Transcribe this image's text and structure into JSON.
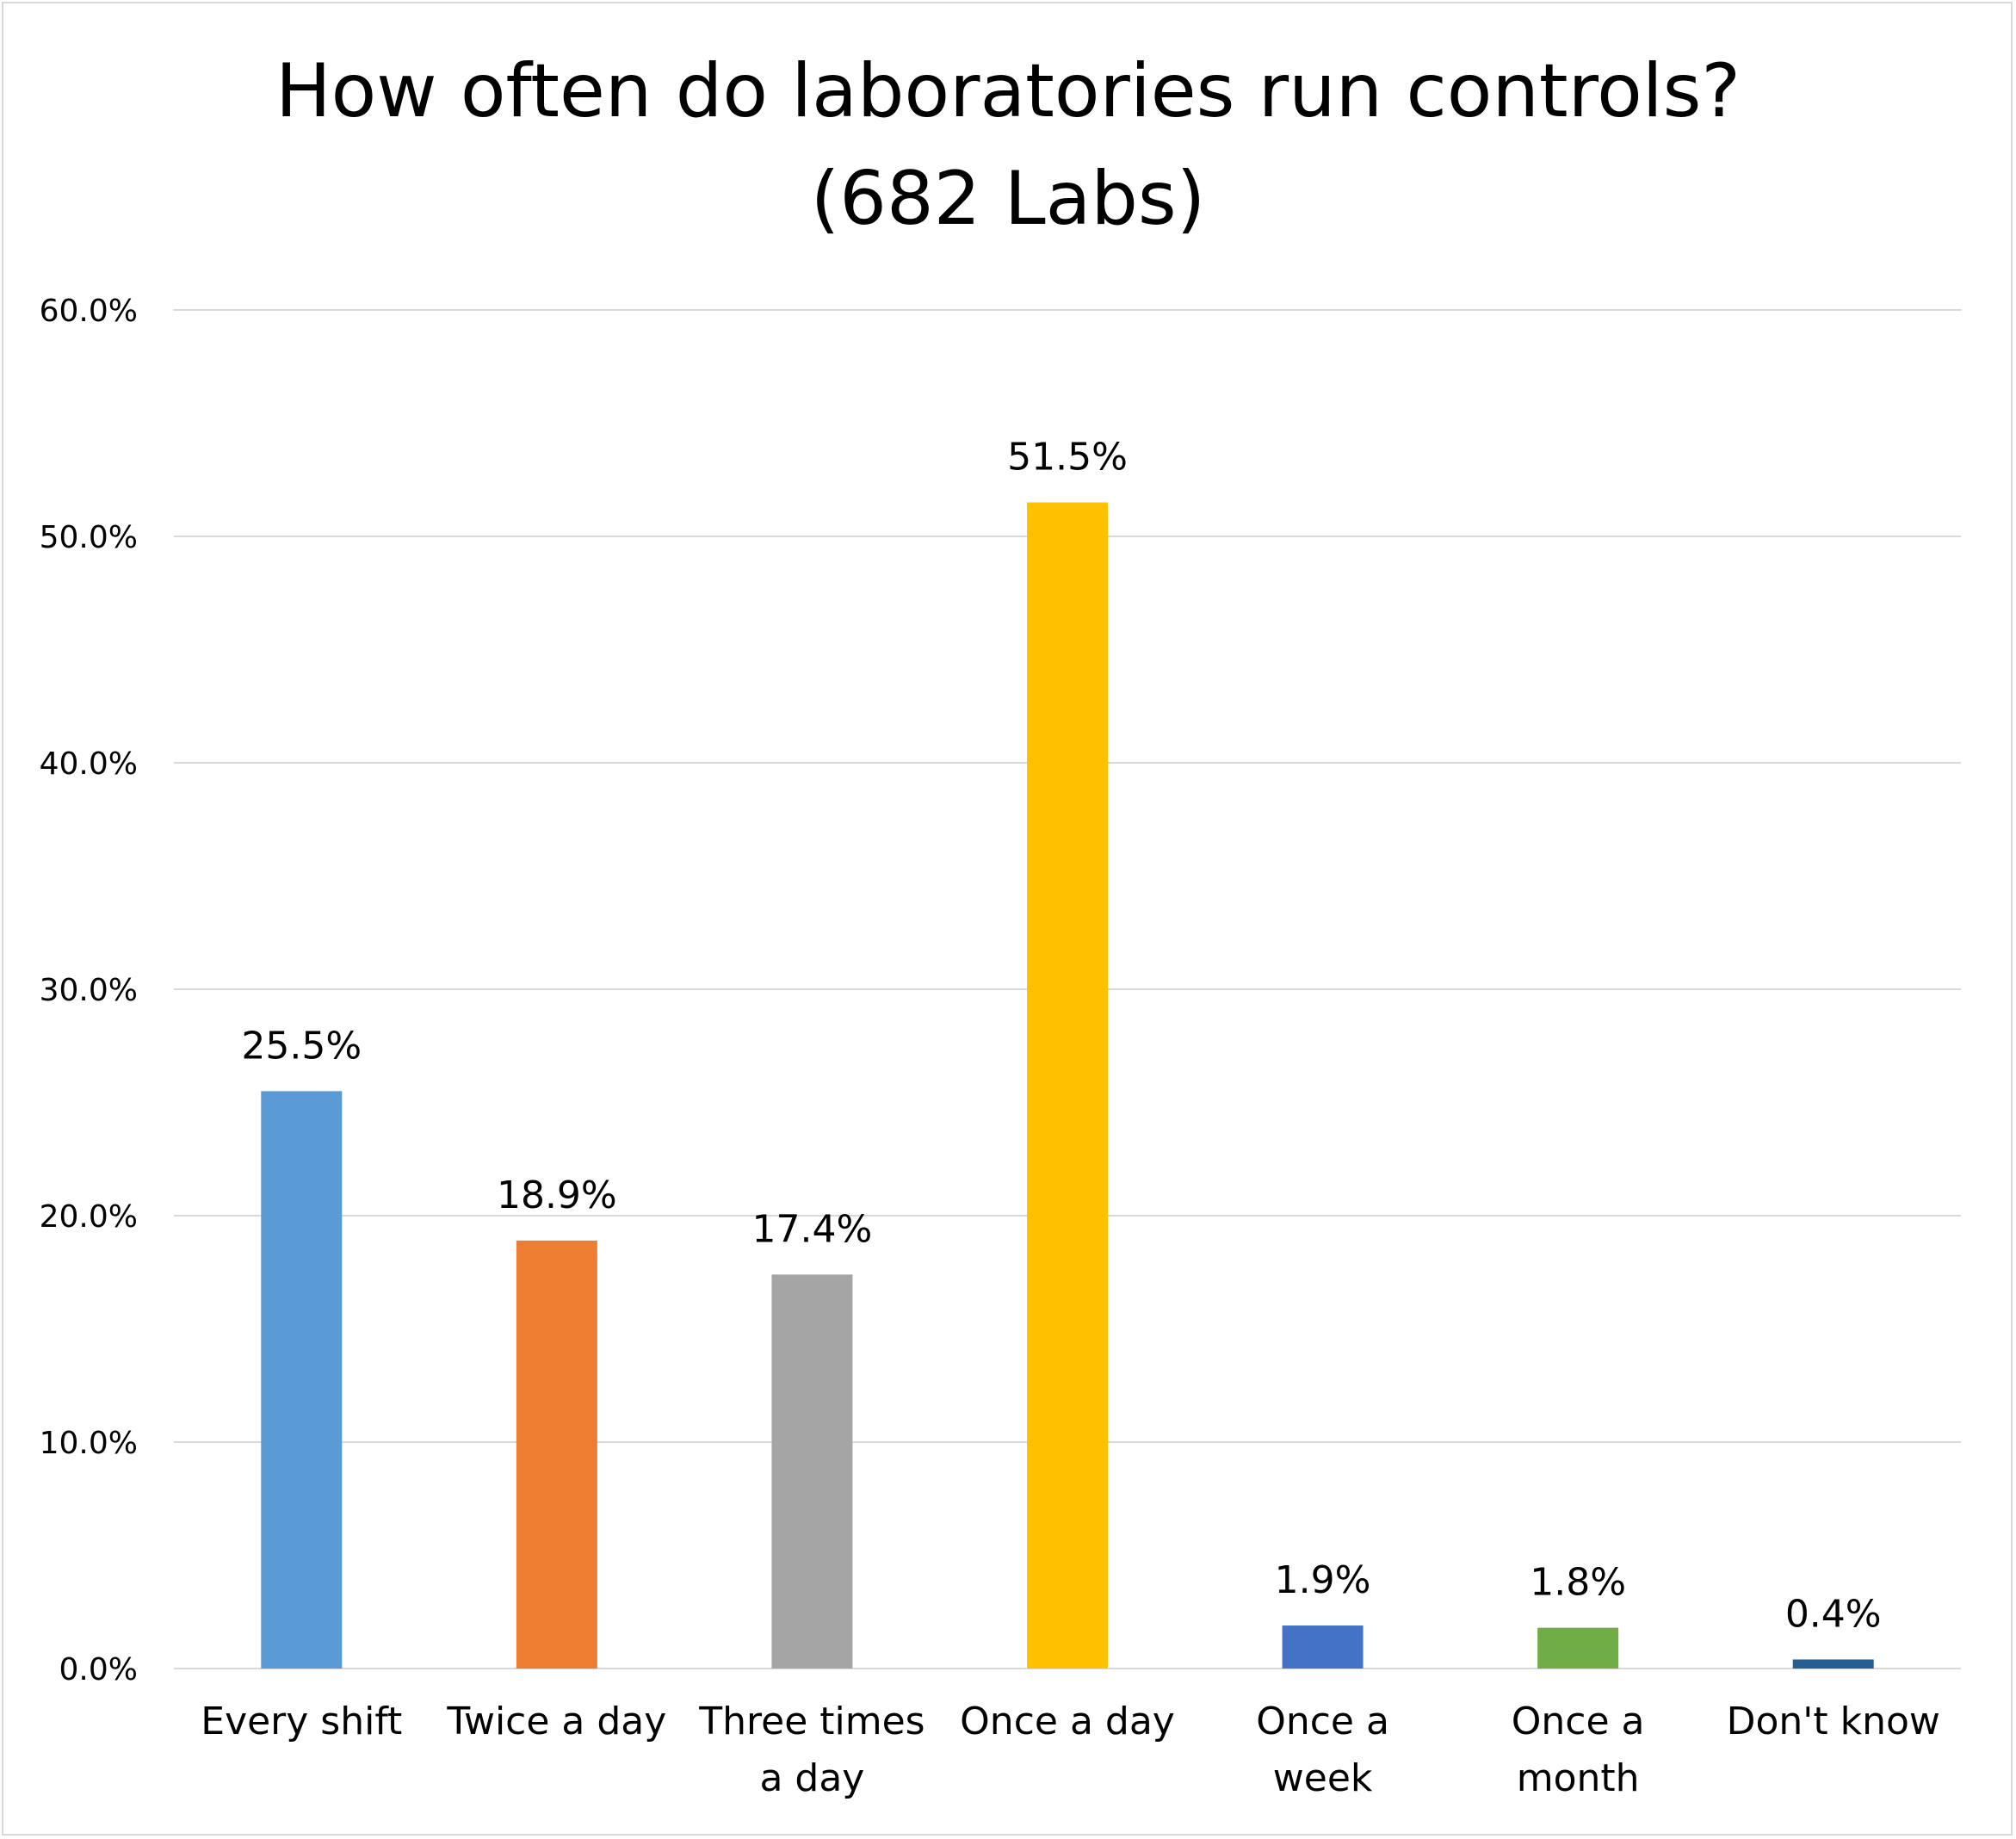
{
  "chart_data": {
    "type": "bar",
    "title": [
      "How often do laboratories run controls?",
      "(682 Labs)"
    ],
    "xlabel": "",
    "ylabel": "",
    "categories": [
      [
        "Every shift"
      ],
      [
        "Twice a day"
      ],
      [
        "Three times",
        "a day"
      ],
      [
        "Once a day"
      ],
      [
        "Once a",
        "week"
      ],
      [
        "Once a",
        "month"
      ],
      [
        "Don't know"
      ]
    ],
    "values": [
      25.5,
      18.9,
      17.4,
      51.5,
      1.9,
      1.8,
      0.4
    ],
    "data_labels": [
      "25.5%",
      "18.9%",
      "17.4%",
      "51.5%",
      "1.9%",
      "1.8%",
      "0.4%"
    ],
    "colors": [
      "#5B9BD5",
      "#ED7D31",
      "#A5A5A5",
      "#FFC000",
      "#4472C4",
      "#70AD47",
      "#255E91"
    ],
    "ylim": [
      0,
      60
    ],
    "yticks": [
      0,
      10,
      20,
      30,
      40,
      50,
      60
    ],
    "ytick_labels": [
      "0.0%",
      "10.0%",
      "20.0%",
      "30.0%",
      "40.0%",
      "50.0%",
      "60.0%"
    ],
    "grid": true,
    "gridline_color": "#d9d9d9",
    "legend": "none"
  }
}
